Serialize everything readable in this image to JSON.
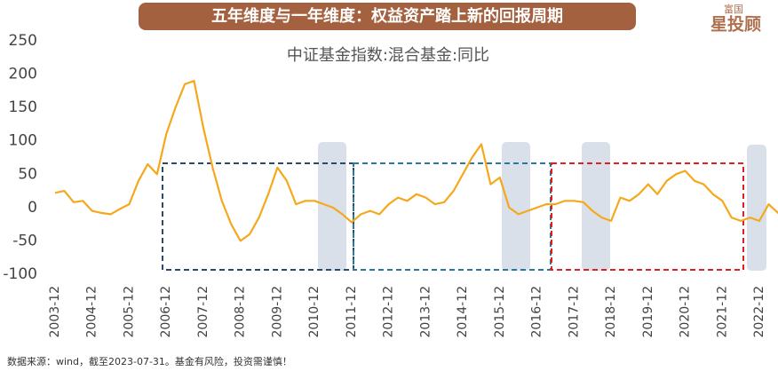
{
  "header": {
    "title": "五年维度与一年维度：权益资产踏上新的回报周期",
    "logo_top": "富国",
    "logo_main": "星投顾"
  },
  "footer": "数据来源：wind，截至2023-07-31。基金有风险，投资需谨慎！",
  "chart_data": {
    "type": "line",
    "title": "中证基金指数:混合基金:同比",
    "x": [
      "2003-12",
      "2004-03",
      "2004-06",
      "2004-09",
      "2004-12",
      "2005-03",
      "2005-06",
      "2005-09",
      "2005-12",
      "2006-03",
      "2006-06",
      "2006-09",
      "2006-12",
      "2007-03",
      "2007-06",
      "2007-09",
      "2007-12",
      "2008-03",
      "2008-06",
      "2008-09",
      "2008-12",
      "2009-03",
      "2009-06",
      "2009-09",
      "2009-12",
      "2010-03",
      "2010-06",
      "2010-09",
      "2010-12",
      "2011-03",
      "2011-06",
      "2011-09",
      "2011-12",
      "2012-03",
      "2012-06",
      "2012-09",
      "2012-12",
      "2013-03",
      "2013-06",
      "2013-09",
      "2013-12",
      "2014-03",
      "2014-06",
      "2014-09",
      "2014-12",
      "2015-03",
      "2015-06",
      "2015-09",
      "2015-12",
      "2016-03",
      "2016-06",
      "2016-09",
      "2016-12",
      "2017-03",
      "2017-06",
      "2017-09",
      "2017-12",
      "2018-03",
      "2018-06",
      "2018-09",
      "2018-12",
      "2019-03",
      "2019-06",
      "2019-09",
      "2019-12",
      "2020-03",
      "2020-06",
      "2020-09",
      "2020-12",
      "2021-03",
      "2021-06",
      "2021-09",
      "2021-12",
      "2022-03",
      "2022-06",
      "2022-09",
      "2022-12",
      "2023-03",
      "2023-07"
    ],
    "series": [
      {
        "name": "中证基金指数:混合基金:同比",
        "color": "#f5a81c",
        "values": [
          22,
          25,
          8,
          10,
          -5,
          -8,
          -10,
          -2,
          5,
          40,
          65,
          50,
          110,
          150,
          185,
          190,
          120,
          60,
          10,
          -25,
          -50,
          -40,
          -15,
          20,
          60,
          40,
          5,
          10,
          10,
          5,
          0,
          -10,
          -22,
          -10,
          -5,
          -10,
          5,
          15,
          10,
          20,
          15,
          5,
          8,
          25,
          50,
          75,
          95,
          35,
          45,
          0,
          -10,
          -5,
          0,
          5,
          5,
          10,
          10,
          8,
          -5,
          -15,
          -20,
          15,
          10,
          20,
          35,
          20,
          40,
          50,
          55,
          40,
          35,
          20,
          10,
          -15,
          -20,
          -15,
          -20,
          5,
          -12
        ]
      }
    ],
    "ylim": [
      -100,
      250
    ],
    "yticks": [
      -100,
      -50,
      0,
      50,
      100,
      150,
      200,
      250
    ],
    "xticks": [
      "2003-12",
      "2004-12",
      "2005-12",
      "2006-12",
      "2007-12",
      "2008-12",
      "2009-12",
      "2010-12",
      "2011-12",
      "2012-12",
      "2013-12",
      "2014-12",
      "2015-12",
      "2016-12",
      "2017-12",
      "2018-12",
      "2019-12",
      "2020-12",
      "2021-12",
      "2022-12"
    ]
  }
}
